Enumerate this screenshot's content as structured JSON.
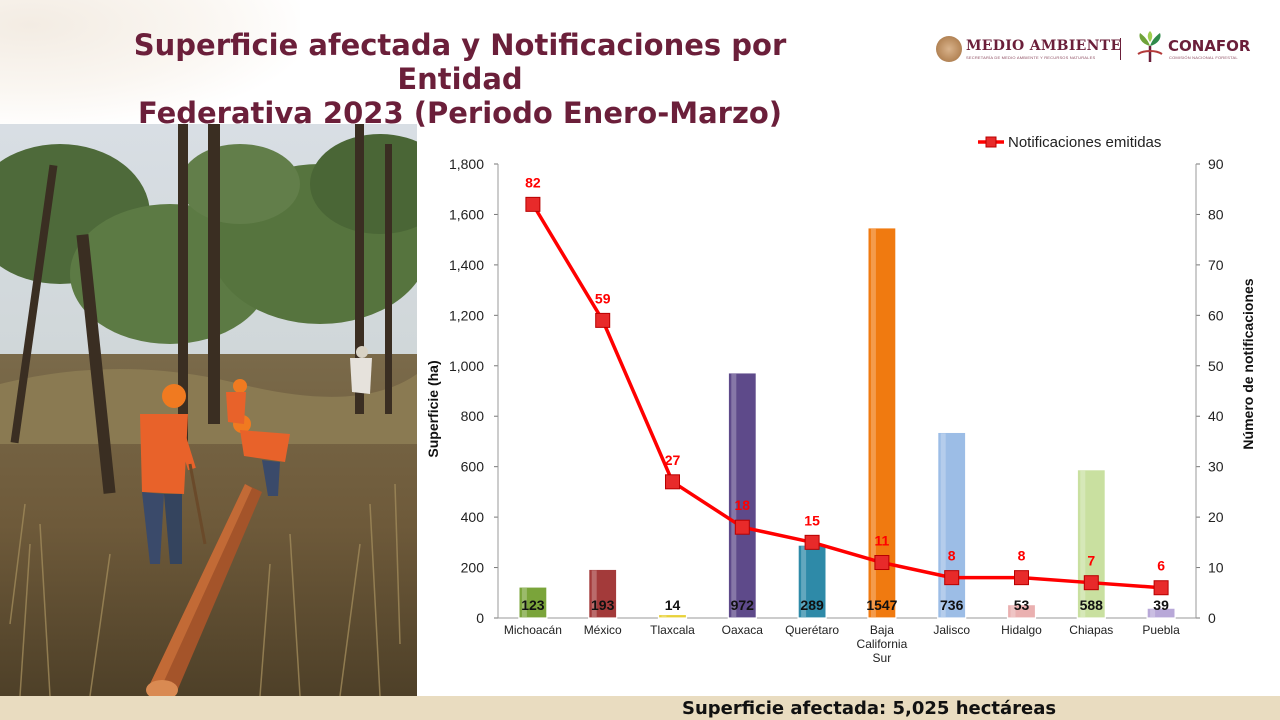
{
  "title": {
    "line1": "Superficie afectada y Notificaciones por Entidad",
    "line2": "Federativa 2023 (Periodo Enero-Marzo)"
  },
  "logos": {
    "medio_ambiente": "MEDIO AMBIENTE",
    "medio_ambiente_sub": "SECRETARÍA DE MEDIO AMBIENTE Y RECURSOS NATURALES",
    "conafor": "CONAFOR",
    "conafor_sub": "COMISIÓN NACIONAL FORESTAL"
  },
  "footer": {
    "summary": "Superficie afectada:  5,025 hectáreas"
  },
  "colors": {
    "title": "#6b1f3a",
    "line": "#ff0000",
    "footer_bg": "#e9dcc0"
  },
  "chart_data": {
    "type": "bar",
    "categories": [
      "Michoacán",
      "México",
      "Tlaxcala",
      "Oaxaca",
      "Querétaro",
      "Baja California Sur",
      "Jalisco",
      "Hidalgo",
      "Chiapas",
      "Puebla"
    ],
    "category_lines": [
      [
        "Michoacán"
      ],
      [
        "México"
      ],
      [
        "Tlaxcala"
      ],
      [
        "Oaxaca"
      ],
      [
        "Querétaro"
      ],
      [
        "Baja",
        "California",
        "Sur"
      ],
      [
        "Jalisco"
      ],
      [
        "Hidalgo"
      ],
      [
        "Chiapas"
      ],
      [
        "Puebla"
      ]
    ],
    "bar_values": [
      123,
      193,
      14,
      972,
      289,
      1547,
      736,
      53,
      588,
      39
    ],
    "bar_labels": [
      "123",
      "193",
      "14",
      "972",
      "289",
      "1547",
      "736",
      "53",
      "588",
      "39"
    ],
    "bar_colors": [
      "#7aa43a",
      "#a33a3a",
      "#e8d23a",
      "#5e4a8a",
      "#2e8aa8",
      "#f07a10",
      "#9cbde6",
      "#eab0b0",
      "#c9e0a0",
      "#b8a8d8"
    ],
    "series": [
      {
        "name": "Notificaciones emitidas",
        "type": "line",
        "axis": "right",
        "values": [
          82,
          59,
          27,
          18,
          15,
          11,
          8,
          8,
          7,
          6
        ]
      }
    ],
    "ylabel": "Superficie (ha)",
    "ylabel_right": "Número de notificaciones",
    "ylim": [
      0,
      1800
    ],
    "ylim_right": [
      0,
      90
    ],
    "yticks": [
      0,
      200,
      400,
      600,
      800,
      1000,
      1200,
      1400,
      1600,
      1800
    ],
    "ytick_labels": [
      "0",
      "200",
      "400",
      "600",
      "800",
      "1,000",
      "1,200",
      "1,400",
      "1,600",
      "1,800"
    ],
    "yticks_right": [
      0,
      10,
      20,
      30,
      40,
      50,
      60,
      70,
      80,
      90
    ],
    "legend_position": "top-right",
    "grid": false
  }
}
